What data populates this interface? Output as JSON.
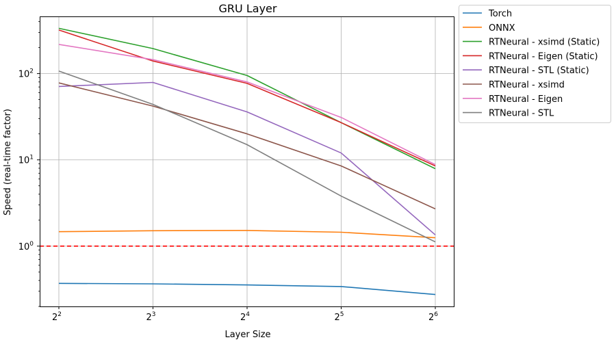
{
  "chart_data": {
    "type": "line",
    "title": "GRU Layer",
    "xlabel": "Layer Size",
    "ylabel": "Speed (real-time factor)",
    "x_scale": "log2",
    "y_scale": "log10",
    "x": [
      4,
      8,
      16,
      32,
      64
    ],
    "x_tick_base": "2",
    "x_tick_exponents": [
      "2",
      "3",
      "4",
      "5",
      "6"
    ],
    "y_ticks": [
      {
        "value": 1,
        "base": "10",
        "exp": "0"
      },
      {
        "value": 10,
        "base": "10",
        "exp": "1"
      },
      {
        "value": 100,
        "base": "10",
        "exp": "2"
      }
    ],
    "ylim": [
      0.2,
      460
    ],
    "grid": true,
    "legend_position": "outside-top-right",
    "reference_line": {
      "y": 1,
      "color": "#ff0000",
      "style": "dashed"
    },
    "series": [
      {
        "name": "Torch",
        "color": "#1f77b4",
        "values": [
          0.37,
          0.365,
          0.355,
          0.34,
          0.275
        ]
      },
      {
        "name": "ONNX",
        "color": "#ff7f0e",
        "values": [
          1.47,
          1.51,
          1.52,
          1.45,
          1.25
        ]
      },
      {
        "name": "RTNeural - xsimd (Static)",
        "color": "#2ca02c",
        "values": [
          335,
          195,
          95,
          27,
          7.9
        ]
      },
      {
        "name": "RTNeural - Eigen (Static)",
        "color": "#d62728",
        "values": [
          320,
          140,
          77,
          27,
          8.5
        ]
      },
      {
        "name": "RTNeural - STL (Static)",
        "color": "#9467bd",
        "values": [
          71,
          79,
          36,
          12,
          1.35
        ]
      },
      {
        "name": "RTNeural - xsimd",
        "color": "#8c564b",
        "values": [
          78,
          42,
          20,
          8.5,
          2.7
        ]
      },
      {
        "name": "RTNeural - Eigen",
        "color": "#e377c2",
        "values": [
          218,
          145,
          80,
          31,
          8.8
        ]
      },
      {
        "name": "RTNeural - STL",
        "color": "#7f7f7f",
        "values": [
          107,
          44,
          15,
          3.8,
          1.12
        ]
      }
    ]
  }
}
